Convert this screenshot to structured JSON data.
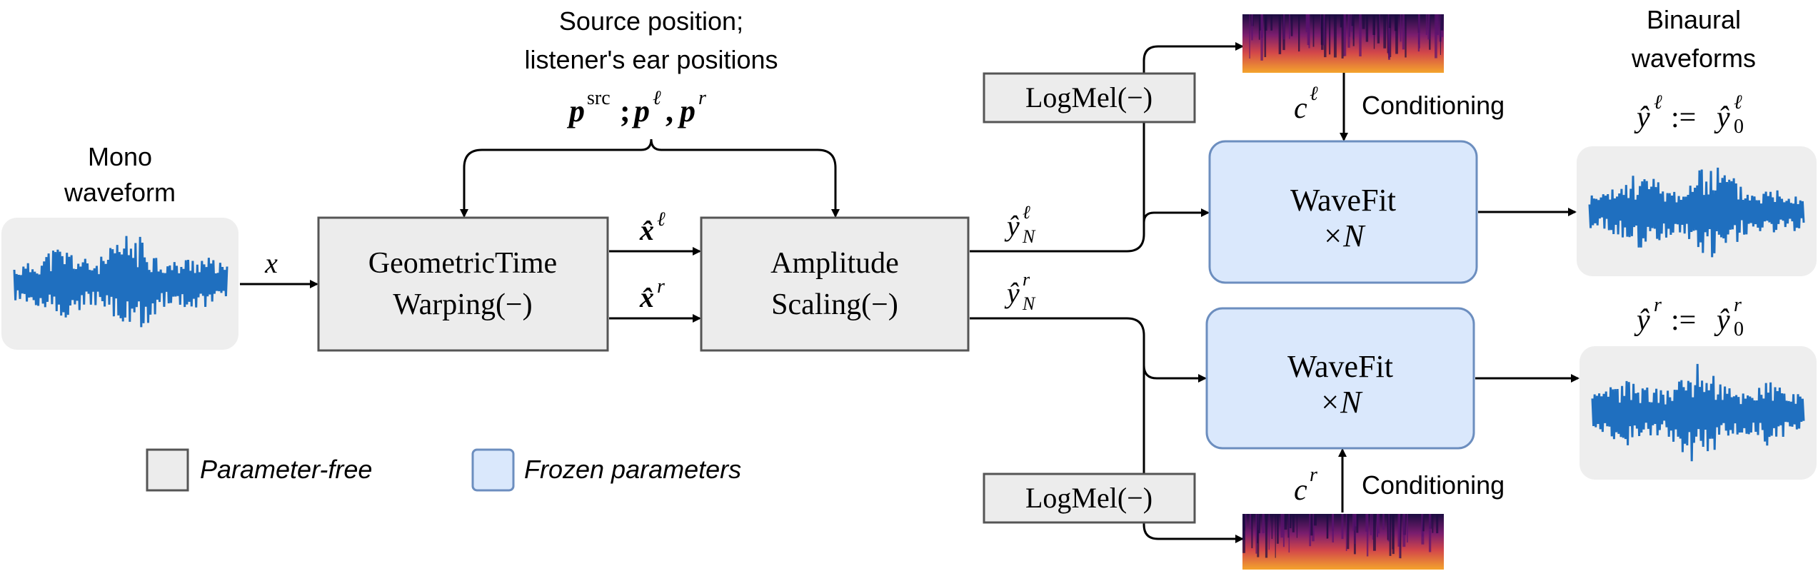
{
  "labels": {
    "mono_line1": "Mono",
    "mono_line2": "waveform",
    "source_line1": "Source position;",
    "source_line2": "listener's ear positions",
    "binaural_line1": "Binaural",
    "binaural_line2": "waveforms",
    "conditioning_top": "Conditioning",
    "conditioning_bottom": "Conditioning"
  },
  "blocks": {
    "gtw_line1": "GeometricTime",
    "gtw_line2": "Warping(−)",
    "amp_line1": "Amplitude",
    "amp_line2": "Scaling(−)",
    "wavefit_top_line1": "WaveFit",
    "wavefit_top_line2": "×N",
    "wavefit_bottom_line1": "WaveFit",
    "wavefit_bottom_line2": "×N",
    "logmel_top": "LogMel(−)",
    "logmel_bottom": "LogMel(−)"
  },
  "math": {
    "x": "x",
    "pos_p_src": "p",
    "pos_src_sup": "src",
    "pos_semicolon": ";",
    "pos_p_l": "p",
    "pos_l_sup": "ℓ",
    "pos_comma": ",",
    "pos_p_r": "p",
    "pos_r_sup": "r",
    "xhat": "x̂",
    "sup_l": "ℓ",
    "sup_r": "r",
    "yhat": "ŷ",
    "sub_N": "N",
    "sub_0": "0",
    "c": "c",
    "assign": ":="
  },
  "legend": {
    "param_free": "Parameter-free",
    "frozen": "Frozen parameters"
  },
  "colors": {
    "gray_box": "#ececec",
    "blue_box": "#dae8fc",
    "blue_border": "#6c8ebf",
    "waveform": "#1f6fbf",
    "wave_bg": "#eeeeee",
    "spec_dark": "#2a0a55",
    "spec_hot": "#f0a030"
  }
}
